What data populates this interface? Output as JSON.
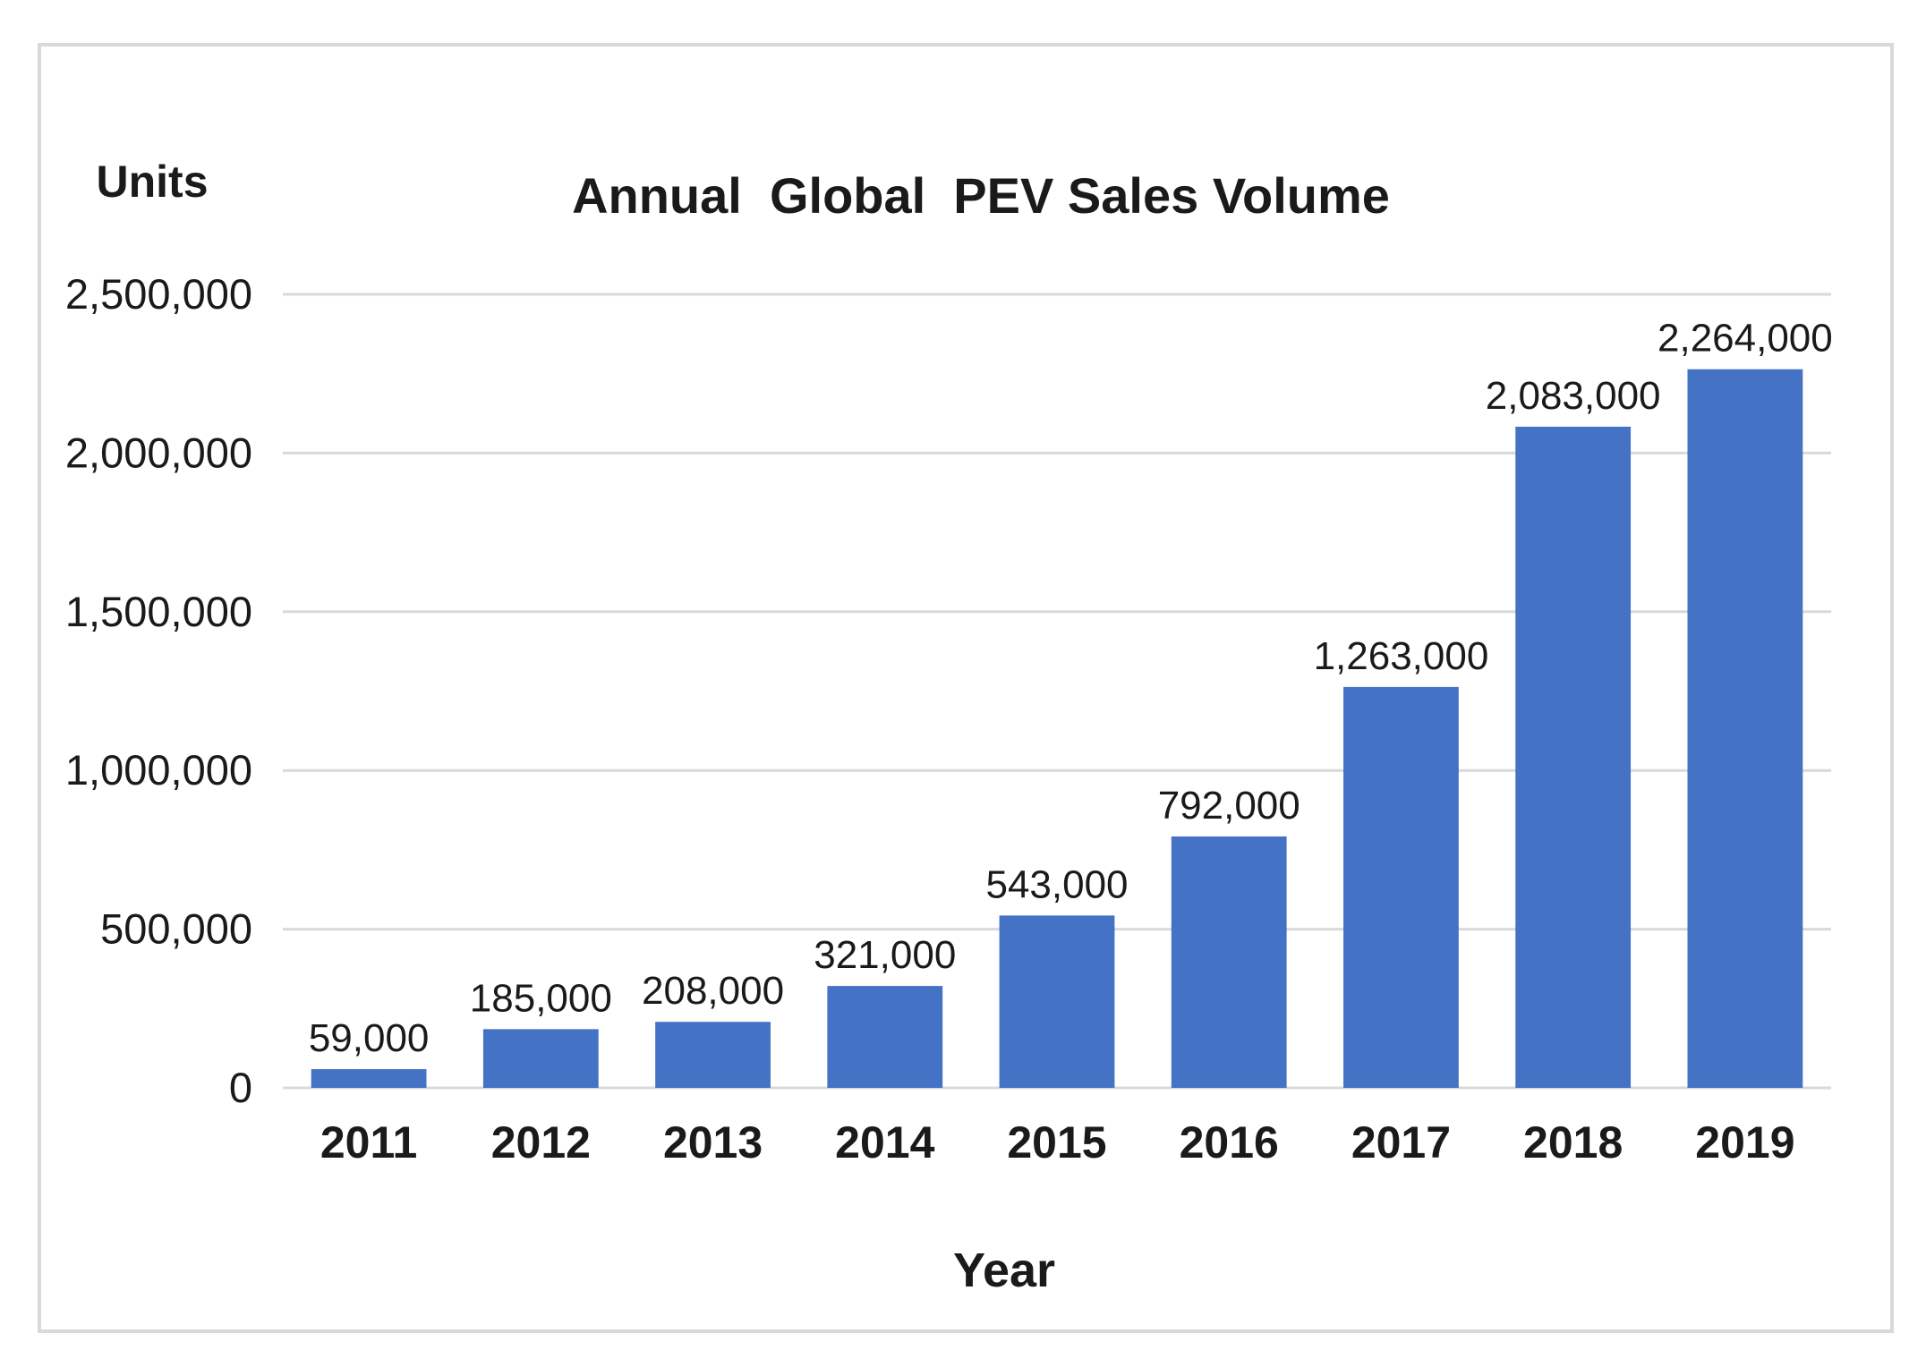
{
  "chart_data": {
    "type": "bar",
    "title": "Annual  Global  PEV Sales Volume",
    "ylabel": "Units",
    "xlabel": "Year",
    "categories": [
      "2011",
      "2012",
      "2013",
      "2014",
      "2015",
      "2016",
      "2017",
      "2018",
      "2019"
    ],
    "values": [
      59000,
      185000,
      208000,
      321000,
      543000,
      792000,
      1263000,
      2083000,
      2264000
    ],
    "data_labels": [
      "59,000",
      "185,000",
      "208,000",
      "321,000",
      "543,000",
      "792,000",
      "1,263,000",
      "2,083,000",
      "2,264,000"
    ],
    "ylim": [
      0,
      2500000
    ],
    "yticks": [
      0,
      500000,
      1000000,
      1500000,
      2000000,
      2500000
    ],
    "ytick_labels": [
      "0",
      "500,000",
      "1,000,000",
      "1,500,000",
      "2,000,000",
      "2,500,000"
    ],
    "grid": true,
    "bar_color": "#4472c4",
    "legend": "none"
  }
}
